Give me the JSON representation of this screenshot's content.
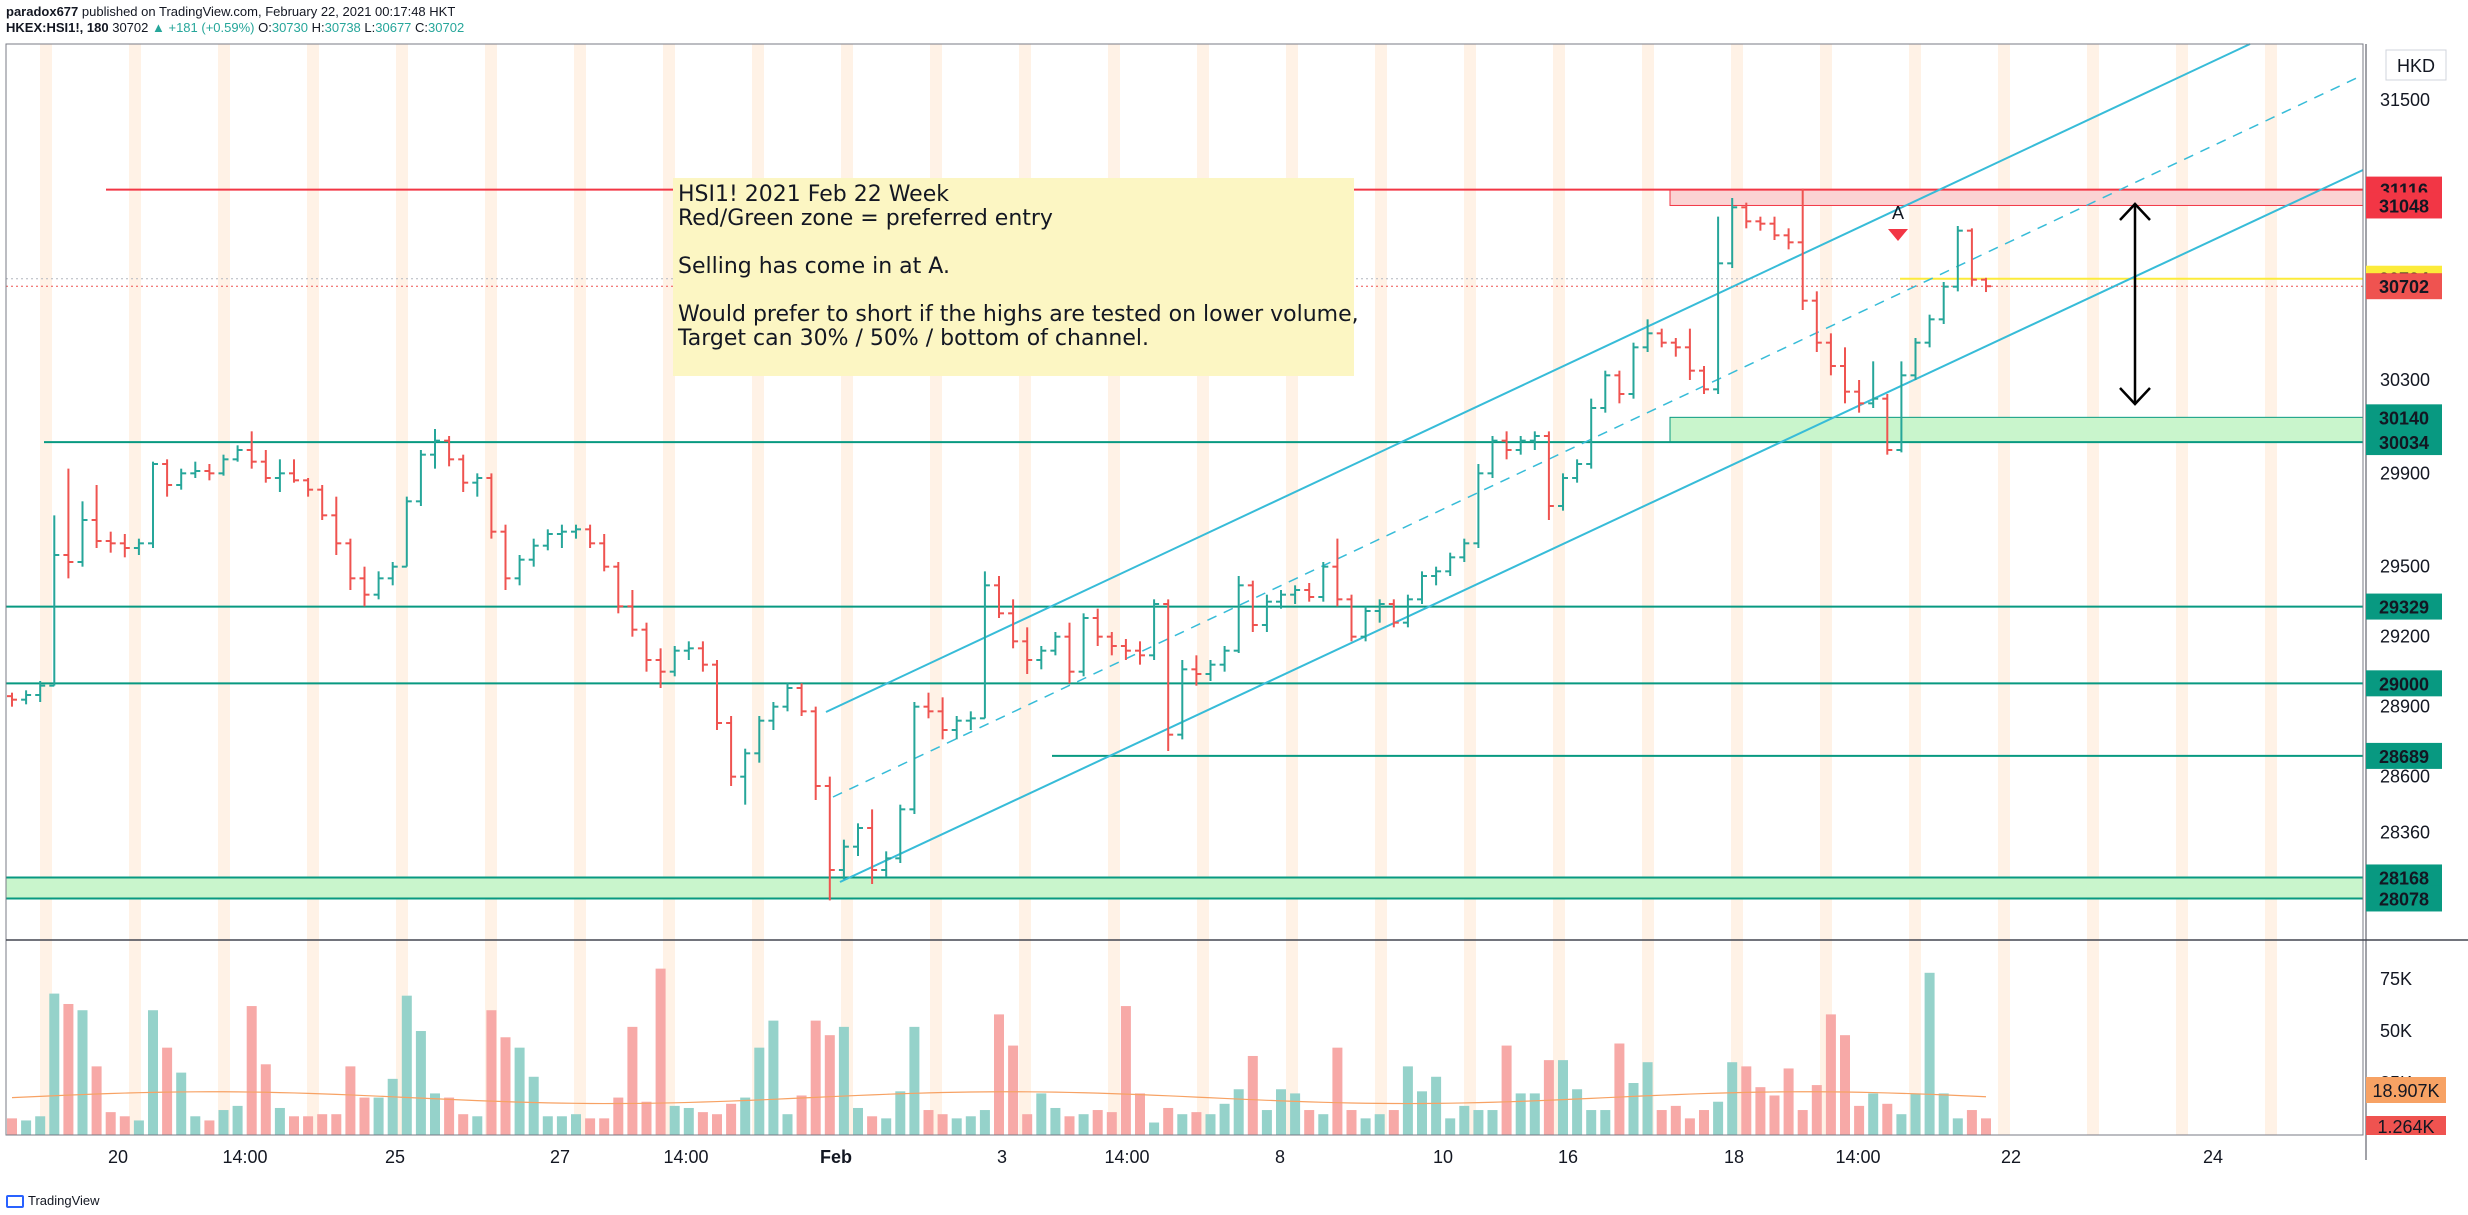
{
  "header": {
    "publisher": "paradox677",
    "published_text": " published on TradingView.com, February 22, 2021 00:17:48 HKT",
    "symbol": "HKEX:HSI1!, 180",
    "last": "30702",
    "change": "▲ +181 (+0.59%)",
    "open_label": "O:",
    "open": "30730",
    "high_label": "H:",
    "high": "30738",
    "low_label": "L:",
    "low": "30677",
    "close_label": "C:",
    "close": "30702"
  },
  "footer": {
    "brand": "TradingView"
  },
  "currency": "HKD",
  "note": {
    "lines": [
      "HSI1! 2021 Feb 22 Week",
      "Red/Green zone = preferred entry",
      "",
      "Selling has come in at A.",
      "",
      "Would prefer to short if the highs are tested on lower volume,",
      "Target can 30% / 50% / bottom of channel."
    ]
  },
  "marker_label": "A",
  "colors": {
    "up": "#26a69a",
    "down": "#ef5350",
    "vol_up": "#95d2ca",
    "vol_down": "#f7a9a7",
    "channel": "#37bcd8",
    "level": "#089981",
    "resistance": "#f23645",
    "zone_red": "#fbd3d3",
    "zone_green": "#c9f5cc",
    "note_bg": "#fcf6c3",
    "session": "#fff2e6",
    "yellow": "#fceb3a",
    "ma": "#f7a264"
  },
  "chart_data": {
    "type": "ohlc",
    "title": "HSI1! 2021 Feb 22 Week",
    "symbol": "HKEX:HSI1!",
    "interval": "180",
    "currency": "HKD",
    "x_ticks": [
      "20",
      "14:00",
      "25",
      "27",
      "14:00",
      "Feb",
      "3",
      "14:00",
      "8",
      "10",
      "16",
      "18",
      "14:00",
      "22",
      "24"
    ],
    "y_ticks": [
      "31500",
      "30300",
      "29900",
      "29500",
      "29200",
      "28900",
      "28600",
      "28360"
    ],
    "ylim": [
      27900,
      31740
    ],
    "price_labels": [
      {
        "text": "31116",
        "value": 31116,
        "kind": "resistance"
      },
      {
        "text": "31048",
        "value": 31048,
        "kind": "resistance"
      },
      {
        "text": "30734",
        "value": 30734,
        "kind": "yellow"
      },
      {
        "text": "30702",
        "value": 30702,
        "kind": "last"
      },
      {
        "text": "30140",
        "value": 30140,
        "kind": "support"
      },
      {
        "text": "30034",
        "value": 30034,
        "kind": "support"
      },
      {
        "text": "29329",
        "value": 29329,
        "kind": "support"
      },
      {
        "text": "29000",
        "value": 29000,
        "kind": "support"
      },
      {
        "text": "28689",
        "value": 28689,
        "kind": "support"
      },
      {
        "text": "28168",
        "value": 28168,
        "kind": "support"
      },
      {
        "text": "28078",
        "value": 28078,
        "kind": "support"
      }
    ],
    "horizontal_levels": [
      31116,
      30034,
      29329,
      29000,
      28689,
      28168,
      28078
    ],
    "zones": [
      {
        "kind": "red",
        "from": 31048,
        "to": 31116
      },
      {
        "kind": "green",
        "from": 30034,
        "to": 30140
      },
      {
        "kind": "green",
        "from": 28078,
        "to": 28168
      }
    ],
    "volume": {
      "y_ticks": [
        "75K",
        "50K",
        "25K"
      ],
      "ylim": [
        0,
        88000
      ],
      "ma_label": "18.907K",
      "last_label": "1.264K",
      "ma_value": 18907,
      "last_value": 1264
    },
    "ohlc": [
      [
        28945,
        28960,
        28900,
        28930
      ],
      [
        28930,
        28970,
        28910,
        28950
      ],
      [
        28950,
        29010,
        28920,
        28990
      ],
      [
        28990,
        29720,
        28990,
        29550
      ],
      [
        29550,
        29920,
        29450,
        29520
      ],
      [
        29520,
        29780,
        29500,
        29700
      ],
      [
        29700,
        29850,
        29580,
        29610
      ],
      [
        29610,
        29650,
        29560,
        29600
      ],
      [
        29600,
        29640,
        29540,
        29580
      ],
      [
        29580,
        29620,
        29550,
        29600
      ],
      [
        29600,
        29950,
        29580,
        29940
      ],
      [
        29940,
        29960,
        29800,
        29850
      ],
      [
        29850,
        29920,
        29830,
        29900
      ],
      [
        29900,
        29950,
        29880,
        29910
      ],
      [
        29910,
        29940,
        29870,
        29900
      ],
      [
        29900,
        29980,
        29890,
        29960
      ],
      [
        29960,
        30020,
        29950,
        30000
      ],
      [
        30000,
        30080,
        29920,
        29950
      ],
      [
        29950,
        30000,
        29860,
        29880
      ],
      [
        29880,
        29960,
        29820,
        29900
      ],
      [
        29900,
        29960,
        29860,
        29870
      ],
      [
        29870,
        29880,
        29800,
        29830
      ],
      [
        29830,
        29850,
        29700,
        29720
      ],
      [
        29720,
        29800,
        29550,
        29600
      ],
      [
        29600,
        29620,
        29400,
        29450
      ],
      [
        29450,
        29500,
        29330,
        29380
      ],
      [
        29380,
        29480,
        29360,
        29450
      ],
      [
        29450,
        29520,
        29420,
        29500
      ],
      [
        29500,
        29800,
        29500,
        29780
      ],
      [
        29780,
        30000,
        29760,
        29980
      ],
      [
        29980,
        30090,
        29920,
        30040
      ],
      [
        30040,
        30060,
        29930,
        29960
      ],
      [
        29960,
        29980,
        29820,
        29860
      ],
      [
        29860,
        29900,
        29800,
        29880
      ],
      [
        29880,
        29900,
        29620,
        29650
      ],
      [
        29650,
        29680,
        29400,
        29450
      ],
      [
        29450,
        29550,
        29420,
        29530
      ],
      [
        29530,
        29620,
        29500,
        29590
      ],
      [
        29590,
        29660,
        29570,
        29640
      ],
      [
        29640,
        29680,
        29580,
        29650
      ],
      [
        29650,
        29680,
        29620,
        29660
      ],
      [
        29660,
        29680,
        29580,
        29600
      ],
      [
        29600,
        29640,
        29480,
        29500
      ],
      [
        29500,
        29520,
        29300,
        29330
      ],
      [
        29330,
        29400,
        29200,
        29230
      ],
      [
        29230,
        29260,
        29050,
        29100
      ],
      [
        29100,
        29150,
        28980,
        29050
      ],
      [
        29050,
        29160,
        29030,
        29140
      ],
      [
        29140,
        29180,
        29100,
        29150
      ],
      [
        29150,
        29180,
        29050,
        29080
      ],
      [
        29080,
        29100,
        28800,
        28830
      ],
      [
        28830,
        28860,
        28560,
        28600
      ],
      [
        28600,
        28720,
        28480,
        28700
      ],
      [
        28700,
        28860,
        28660,
        28840
      ],
      [
        28840,
        28920,
        28800,
        28900
      ],
      [
        28900,
        29000,
        28880,
        28980
      ],
      [
        28980,
        29000,
        28860,
        28880
      ],
      [
        28880,
        28900,
        28500,
        28560
      ],
      [
        28560,
        28600,
        28070,
        28200
      ],
      [
        28200,
        28330,
        28160,
        28300
      ],
      [
        28300,
        28400,
        28260,
        28380
      ],
      [
        28380,
        28460,
        28140,
        28200
      ],
      [
        28200,
        28280,
        28170,
        28250
      ],
      [
        28250,
        28480,
        28230,
        28460
      ],
      [
        28460,
        28920,
        28440,
        28900
      ],
      [
        28900,
        28960,
        28850,
        28880
      ],
      [
        28880,
        28940,
        28760,
        28800
      ],
      [
        28800,
        28860,
        28760,
        28840
      ],
      [
        28840,
        28880,
        28800,
        28850
      ],
      [
        28850,
        29480,
        28850,
        29420
      ],
      [
        29420,
        29460,
        29280,
        29300
      ],
      [
        29300,
        29360,
        29150,
        29180
      ],
      [
        29180,
        29240,
        29040,
        29100
      ],
      [
        29100,
        29160,
        29060,
        29140
      ],
      [
        29140,
        29220,
        29120,
        29200
      ],
      [
        29200,
        29260,
        29000,
        29050
      ],
      [
        29050,
        29300,
        29030,
        29280
      ],
      [
        29280,
        29320,
        29160,
        29200
      ],
      [
        29200,
        29220,
        29120,
        29160
      ],
      [
        29160,
        29190,
        29100,
        29140
      ],
      [
        29140,
        29180,
        29080,
        29120
      ],
      [
        29120,
        29360,
        29100,
        29340
      ],
      [
        29340,
        29360,
        28710,
        28780
      ],
      [
        28780,
        29100,
        28760,
        29060
      ],
      [
        29060,
        29120,
        28990,
        29040
      ],
      [
        29040,
        29100,
        29010,
        29080
      ],
      [
        29080,
        29160,
        29050,
        29140
      ],
      [
        29140,
        29460,
        29130,
        29420
      ],
      [
        29420,
        29440,
        29220,
        29250
      ],
      [
        29250,
        29380,
        29220,
        29350
      ],
      [
        29350,
        29400,
        29320,
        29380
      ],
      [
        29380,
        29420,
        29340,
        29400
      ],
      [
        29400,
        29430,
        29350,
        29370
      ],
      [
        29370,
        29520,
        29350,
        29500
      ],
      [
        29500,
        29620,
        29330,
        29360
      ],
      [
        29360,
        29380,
        29180,
        29200
      ],
      [
        29200,
        29330,
        29180,
        29310
      ],
      [
        29310,
        29360,
        29260,
        29340
      ],
      [
        29340,
        29360,
        29240,
        29260
      ],
      [
        29260,
        29380,
        29240,
        29360
      ],
      [
        29360,
        29480,
        29340,
        29460
      ],
      [
        29460,
        29500,
        29420,
        29480
      ],
      [
        29480,
        29560,
        29460,
        29540
      ],
      [
        29540,
        29620,
        29520,
        29600
      ],
      [
        29600,
        29940,
        29580,
        29900
      ],
      [
        29900,
        30060,
        29880,
        30040
      ],
      [
        30040,
        30080,
        29960,
        30000
      ],
      [
        30000,
        30060,
        29980,
        30040
      ],
      [
        30040,
        30080,
        30000,
        30060
      ],
      [
        30060,
        30080,
        29700,
        29760
      ],
      [
        29760,
        29900,
        29740,
        29880
      ],
      [
        29880,
        29960,
        29860,
        29940
      ],
      [
        29940,
        30220,
        29920,
        30180
      ],
      [
        30180,
        30340,
        30160,
        30320
      ],
      [
        30320,
        30340,
        30200,
        30240
      ],
      [
        30240,
        30460,
        30220,
        30440
      ],
      [
        30440,
        30560,
        30420,
        30500
      ],
      [
        30500,
        30520,
        30440,
        30460
      ],
      [
        30460,
        30480,
        30400,
        30440
      ],
      [
        30440,
        30520,
        30300,
        30340
      ],
      [
        30340,
        30360,
        30240,
        30260
      ],
      [
        30260,
        31000,
        30240,
        30800
      ],
      [
        30800,
        31080,
        30780,
        31040
      ],
      [
        31040,
        31060,
        30950,
        30980
      ],
      [
        30980,
        31000,
        30940,
        30970
      ],
      [
        30970,
        31000,
        30900,
        30920
      ],
      [
        30920,
        30950,
        30860,
        30890
      ],
      [
        30890,
        31120,
        30600,
        30640
      ],
      [
        30640,
        30680,
        30420,
        30460
      ],
      [
        30460,
        30500,
        30320,
        30360
      ],
      [
        30360,
        30440,
        30200,
        30250
      ],
      [
        30250,
        30300,
        30160,
        30200
      ],
      [
        30200,
        30380,
        30180,
        30220
      ],
      [
        30220,
        30240,
        29980,
        30000
      ],
      [
        30000,
        30380,
        29990,
        30320
      ],
      [
        30320,
        30480,
        30300,
        30460
      ],
      [
        30460,
        30580,
        30440,
        30560
      ],
      [
        30560,
        30720,
        30540,
        30700
      ],
      [
        30700,
        30960,
        30680,
        30940
      ],
      [
        30940,
        30950,
        30700,
        30730
      ],
      [
        30730,
        30738,
        30677,
        30702
      ]
    ],
    "volume_bars": [
      8,
      7,
      9,
      68,
      63,
      60,
      33,
      11,
      9,
      7,
      60,
      42,
      30,
      9,
      7,
      12,
      14,
      62,
      34,
      13,
      9,
      9,
      10,
      10,
      33,
      18,
      18,
      27,
      67,
      50,
      20,
      18,
      10,
      9,
      60,
      47,
      42,
      28,
      9,
      9,
      10,
      8,
      8,
      18,
      52,
      16,
      80,
      14,
      13,
      11,
      10,
      15,
      18,
      42,
      55,
      10,
      19,
      55,
      48,
      52,
      13,
      9,
      8,
      21,
      52,
      12,
      10,
      8,
      9,
      12,
      58,
      43,
      10,
      20,
      13,
      9,
      10,
      12,
      11,
      62,
      20,
      6,
      13,
      10,
      11,
      10,
      15,
      22,
      38,
      12,
      22,
      20,
      12,
      10,
      42,
      12,
      8,
      10,
      12,
      33,
      21,
      28,
      8,
      14,
      12,
      12,
      43,
      20,
      20,
      36,
      36,
      22,
      12,
      12,
      44,
      25,
      35,
      12,
      14,
      8,
      12,
      16,
      35,
      33,
      23,
      19,
      32,
      12,
      24,
      58,
      48,
      14,
      20,
      15,
      10,
      20,
      78,
      20,
      8,
      12,
      8
    ]
  }
}
